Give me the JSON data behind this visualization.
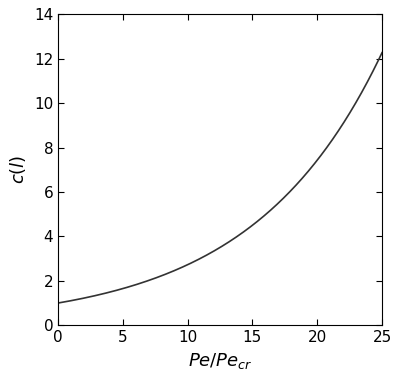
{
  "xlim": [
    0,
    25
  ],
  "ylim": [
    0,
    14
  ],
  "xticks": [
    0,
    5,
    10,
    15,
    20,
    25
  ],
  "yticks": [
    0,
    2,
    4,
    6,
    8,
    10,
    12,
    14
  ],
  "xlabel": "$Pe/Pe_{cr}$",
  "ylabel": "$c(l)$",
  "line_color": "#333333",
  "line_width": 1.2,
  "formula_k": 9.97,
  "x_start": 0.0,
  "x_end": 25.0,
  "n_points": 1000,
  "background_color": "#ffffff",
  "tick_fontsize": 11,
  "label_fontsize": 13,
  "fig_width": 4.0,
  "fig_height": 3.79,
  "dpi": 100
}
